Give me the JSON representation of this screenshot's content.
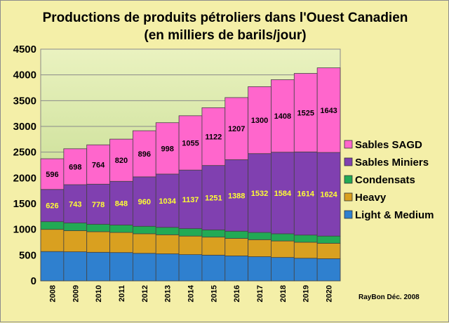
{
  "chart_data": {
    "type": "bar",
    "stacked": true,
    "title": "Productions de produits pétroliers dans l'Ouest Canadien",
    "subtitle": "(en milliers de barils/jour)",
    "categories": [
      "2008",
      "2009",
      "2010",
      "2011",
      "2012",
      "2013",
      "2014",
      "2015",
      "2016",
      "2017",
      "2018",
      "2019",
      "2020"
    ],
    "ylim": [
      0,
      4500
    ],
    "yticks": [
      0,
      500,
      1000,
      1500,
      2000,
      2500,
      3000,
      3500,
      4000,
      4500
    ],
    "series": [
      {
        "name": "Light & Medium",
        "color": "#2f80cf",
        "values": [
          570,
          565,
          555,
          550,
          535,
          525,
          510,
          500,
          485,
          470,
          455,
          440,
          430
        ]
      },
      {
        "name": "Heavy",
        "color": "#d9a020",
        "values": [
          430,
          410,
          400,
          390,
          380,
          370,
          360,
          350,
          340,
          330,
          320,
          310,
          300
        ]
      },
      {
        "name": "Condensats",
        "color": "#22aa55",
        "values": [
          150,
          150,
          145,
          145,
          145,
          145,
          145,
          140,
          140,
          140,
          140,
          140,
          140
        ]
      },
      {
        "name": "Sables Miniers",
        "color": "#8040b0",
        "labelColor": "#ffff33",
        "values": [
          626,
          743,
          778,
          848,
          960,
          1034,
          1137,
          1251,
          1388,
          1532,
          1584,
          1614,
          1624
        ]
      },
      {
        "name": "Sables SAGD",
        "color": "#ff66cc",
        "labelColor": "#000000",
        "values": [
          596,
          698,
          764,
          820,
          896,
          998,
          1055,
          1122,
          1207,
          1300,
          1408,
          1525,
          1643
        ]
      }
    ],
    "labeled_series": [
      "Sables Miniers",
      "Sables SAGD"
    ],
    "legend_position": "right"
  },
  "credit": "RayBon Déc. 2008"
}
